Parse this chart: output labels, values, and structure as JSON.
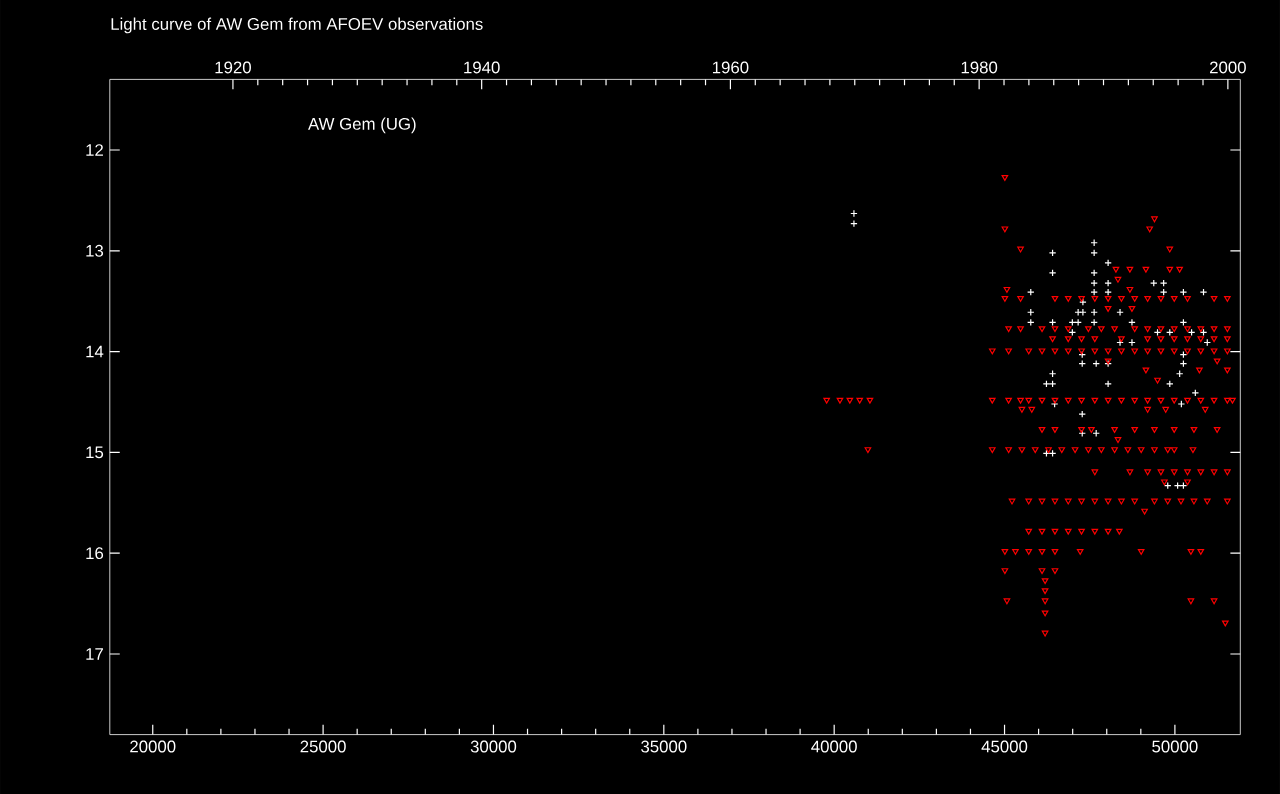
{
  "chart_data": {
    "type": "scatter",
    "title": "Light curve of AW Gem from AFOEV observations",
    "annotations": [
      "AW Gem (UG)"
    ],
    "xlim": [
      18740,
      51920
    ],
    "xticks": [
      20000,
      25000,
      30000,
      35000,
      40000,
      45000,
      50000
    ],
    "x2lim": [
      1910.1,
      2001.0
    ],
    "x2ticks": [
      1920,
      1940,
      1960,
      1980,
      2000
    ],
    "ylim": [
      17.8,
      11.3
    ],
    "yticks": [
      12,
      13,
      14,
      15,
      16,
      17
    ],
    "series": [
      {
        "color": "#ffffff",
        "marker": "cross",
        "x": [
          40580,
          40580,
          46410,
          47630,
          47630,
          48040,
          46410,
          47630,
          47630,
          48040,
          49380,
          49670,
          45770,
          47630,
          48040,
          49670,
          50250,
          50840,
          47300,
          45770,
          47160,
          47300,
          47630,
          48390,
          45770,
          46410,
          46990,
          47160,
          47630,
          48740,
          50250,
          46990,
          49490,
          49850,
          50490,
          50840,
          48390,
          48740,
          50950,
          47280,
          50250,
          47280,
          47690,
          48040,
          50250,
          50140,
          46410,
          46230,
          46410,
          48040,
          49850,
          50600,
          46470,
          50190,
          47280,
          47280,
          47690,
          46230,
          46410,
          49790,
          50080,
          50250
        ],
        "values": [
          12.63,
          12.73,
          13.02,
          12.92,
          13.02,
          13.12,
          13.22,
          13.22,
          13.32,
          13.32,
          13.32,
          13.32,
          13.41,
          13.41,
          13.41,
          13.41,
          13.41,
          13.41,
          13.51,
          13.61,
          13.61,
          13.61,
          13.61,
          13.61,
          13.71,
          13.71,
          13.71,
          13.71,
          13.71,
          13.71,
          13.71,
          13.81,
          13.81,
          13.81,
          13.81,
          13.81,
          13.91,
          13.91,
          13.91,
          14.03,
          14.03,
          14.12,
          14.12,
          14.12,
          14.12,
          14.22,
          14.22,
          14.32,
          14.32,
          14.32,
          14.32,
          14.41,
          14.52,
          14.52,
          14.62,
          14.81,
          14.81,
          15.01,
          15.01,
          15.33,
          15.33,
          15.33
        ]
      },
      {
        "color": "#ff0000",
        "marker": "triangle",
        "x": [
          45010,
          49400,
          49260,
          45010,
          45470,
          49850,
          48270,
          48680,
          49150,
          49850,
          50140,
          48330,
          48680,
          45070,
          45010,
          45470,
          46480,
          46870,
          47260,
          47650,
          48040,
          48430,
          48820,
          49200,
          49590,
          49980,
          50370,
          51150,
          51540,
          48040,
          48740,
          45120,
          45470,
          46100,
          46480,
          46870,
          47460,
          47840,
          48230,
          48820,
          49200,
          49590,
          49980,
          50370,
          50760,
          51150,
          51540,
          46410,
          46870,
          47260,
          47650,
          48430,
          49200,
          49590,
          49980,
          50370,
          50760,
          51150,
          51540,
          44640,
          45120,
          45710,
          46100,
          46480,
          46870,
          47260,
          47650,
          48040,
          48430,
          48820,
          49200,
          49590,
          49980,
          50370,
          50760,
          51150,
          51540,
          48040,
          51240,
          49150,
          50720,
          51540,
          49490,
          39780,
          40170,
          40460,
          40750,
          41050,
          44640,
          45120,
          45470,
          45710,
          46100,
          46480,
          46870,
          47260,
          47650,
          48040,
          48430,
          48820,
          49200,
          49590,
          49980,
          50370,
          50760,
          51150,
          51540,
          51690,
          45510,
          45800,
          49200,
          49730,
          50890,
          46100,
          46480,
          47260,
          47550,
          48230,
          48820,
          49400,
          49980,
          50560,
          51240,
          48330,
          40990,
          44640,
          45120,
          45510,
          45900,
          46290,
          46680,
          47070,
          47460,
          47840,
          48230,
          48620,
          49010,
          49400,
          49790,
          49980,
          50530,
          47650,
          48680,
          49200,
          49590,
          49980,
          50370,
          50760,
          51150,
          51540,
          49690,
          50370,
          45220,
          45710,
          46100,
          46480,
          46870,
          47260,
          47650,
          48040,
          48430,
          48820,
          49400,
          49790,
          50180,
          50560,
          50950,
          51540,
          49110,
          45710,
          46100,
          46480,
          46870,
          47260,
          47650,
          48040,
          48370,
          45010,
          45320,
          45710,
          46100,
          46480,
          47220,
          49010,
          50470,
          50760,
          45010,
          46100,
          46480,
          46190,
          46190,
          45070,
          46190,
          50470,
          51150,
          46190,
          51480,
          46190
        ],
        "values": [
          12.27,
          12.68,
          12.78,
          12.78,
          12.98,
          12.98,
          13.18,
          13.18,
          13.18,
          13.18,
          13.18,
          13.28,
          13.38,
          13.38,
          13.47,
          13.47,
          13.47,
          13.47,
          13.47,
          13.47,
          13.47,
          13.47,
          13.47,
          13.47,
          13.47,
          13.47,
          13.47,
          13.47,
          13.47,
          13.57,
          13.57,
          13.77,
          13.77,
          13.77,
          13.77,
          13.77,
          13.77,
          13.77,
          13.77,
          13.77,
          13.77,
          13.77,
          13.77,
          13.77,
          13.77,
          13.77,
          13.77,
          13.87,
          13.87,
          13.87,
          13.87,
          13.87,
          13.87,
          13.87,
          13.87,
          13.87,
          13.87,
          13.87,
          13.87,
          13.99,
          13.99,
          13.99,
          13.99,
          13.99,
          13.99,
          13.99,
          13.99,
          13.99,
          13.99,
          13.99,
          13.99,
          13.99,
          13.99,
          13.99,
          13.99,
          13.99,
          13.99,
          14.09,
          14.09,
          14.18,
          14.18,
          14.18,
          14.28,
          14.48,
          14.48,
          14.48,
          14.48,
          14.48,
          14.48,
          14.48,
          14.48,
          14.48,
          14.48,
          14.48,
          14.48,
          14.48,
          14.48,
          14.48,
          14.48,
          14.48,
          14.48,
          14.48,
          14.48,
          14.48,
          14.48,
          14.48,
          14.48,
          14.48,
          14.57,
          14.57,
          14.57,
          14.57,
          14.57,
          14.77,
          14.77,
          14.77,
          14.77,
          14.77,
          14.77,
          14.77,
          14.77,
          14.77,
          14.77,
          14.87,
          14.97,
          14.97,
          14.97,
          14.97,
          14.97,
          14.97,
          14.97,
          14.97,
          14.97,
          14.97,
          14.97,
          14.97,
          14.97,
          14.97,
          14.97,
          14.97,
          14.97,
          15.19,
          15.19,
          15.19,
          15.19,
          15.19,
          15.19,
          15.19,
          15.19,
          15.19,
          15.29,
          15.29,
          15.48,
          15.48,
          15.48,
          15.48,
          15.48,
          15.48,
          15.48,
          15.48,
          15.48,
          15.48,
          15.48,
          15.48,
          15.48,
          15.48,
          15.48,
          15.48,
          15.58,
          15.78,
          15.78,
          15.78,
          15.78,
          15.78,
          15.78,
          15.78,
          15.78,
          15.98,
          15.98,
          15.98,
          15.98,
          15.98,
          15.98,
          15.98,
          15.98,
          15.98,
          16.17,
          16.17,
          16.17,
          16.27,
          16.37,
          16.47,
          16.47,
          16.47,
          16.47,
          16.59,
          16.69,
          16.79
        ]
      }
    ]
  }
}
